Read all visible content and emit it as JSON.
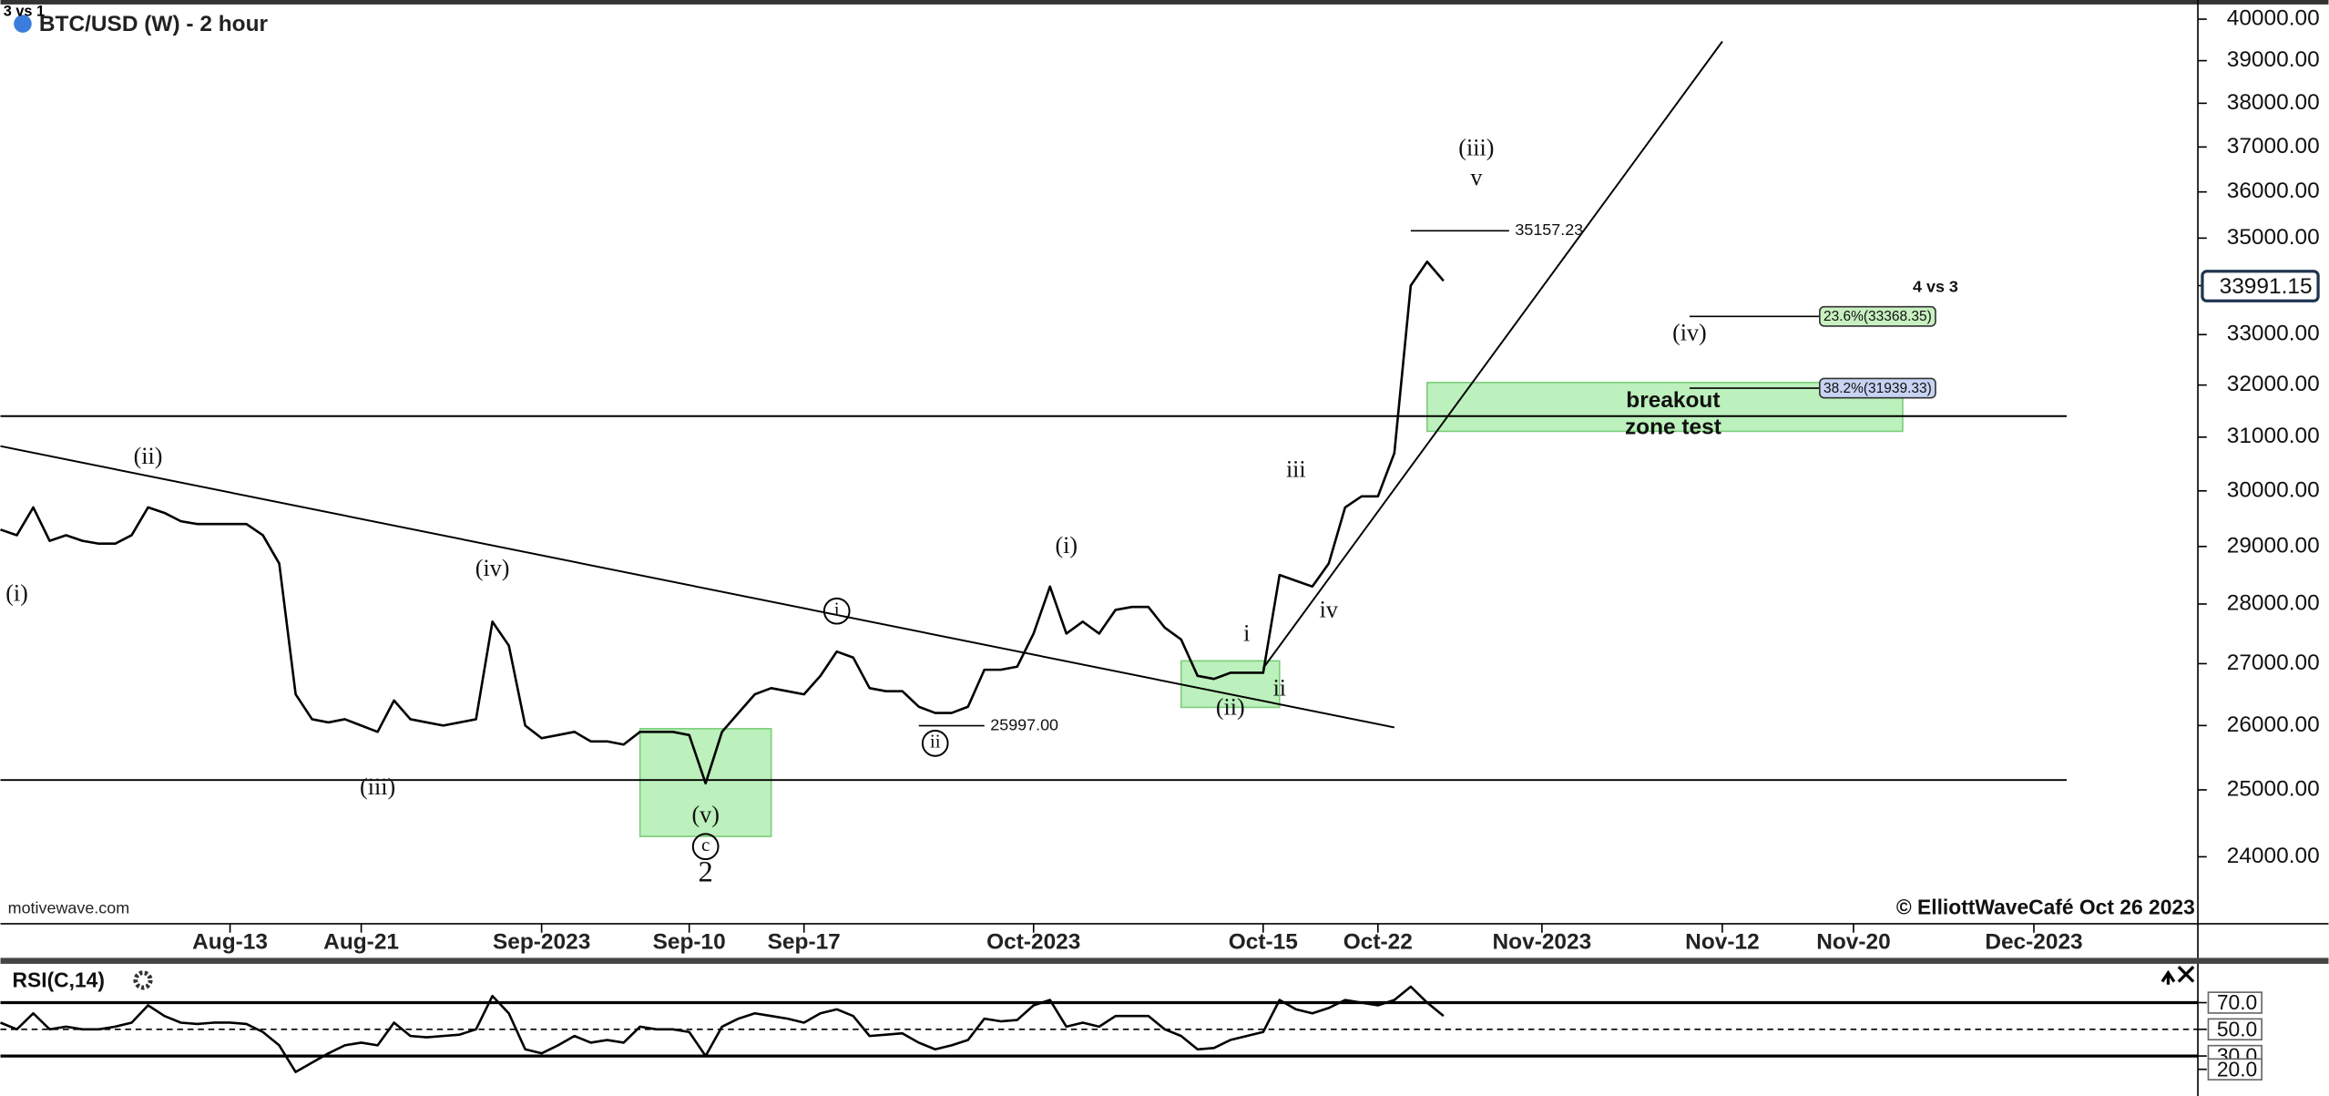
{
  "chart_data": [
    {
      "type": "line",
      "title": "BTC/USD (W) - 2 hour",
      "corner_note": "3 vs 1",
      "source": "motivewave.com",
      "copyright": "© ElliottWaveCafé Oct 26 2023",
      "log_scale": true,
      "color": "#000000",
      "xlim": [
        "2023-07-30",
        "2023-12-11"
      ],
      "ylim": [
        23040,
        40470
      ],
      "xticks": [
        {
          "value": "2023-08-13",
          "label": "Aug-13"
        },
        {
          "value": "2023-08-21",
          "label": "Aug-21"
        },
        {
          "value": "2023-09-01",
          "label": "Sep-2023"
        },
        {
          "value": "2023-09-10",
          "label": "Sep-10"
        },
        {
          "value": "2023-09-17",
          "label": "Sep-17"
        },
        {
          "value": "2023-10-01",
          "label": "Oct-2023"
        },
        {
          "value": "2023-10-15",
          "label": "Oct-15"
        },
        {
          "value": "2023-10-22",
          "label": "Oct-22"
        },
        {
          "value": "2023-11-01",
          "label": "Nov-2023"
        },
        {
          "value": "2023-11-12",
          "label": "Nov-12"
        },
        {
          "value": "2023-11-20",
          "label": "Nov-20"
        },
        {
          "value": "2023-12-01",
          "label": "Dec-2023"
        }
      ],
      "yticks": [
        {
          "value": 24000,
          "label": "24000.00"
        },
        {
          "value": 25000,
          "label": "25000.00"
        },
        {
          "value": 26000,
          "label": "26000.00"
        },
        {
          "value": 27000,
          "label": "27000.00"
        },
        {
          "value": 28000,
          "label": "28000.00"
        },
        {
          "value": 29000,
          "label": "29000.00"
        },
        {
          "value": 30000,
          "label": "30000.00"
        },
        {
          "value": 31000,
          "label": "31000.00"
        },
        {
          "value": 32000,
          "label": "32000.00"
        },
        {
          "value": 33000,
          "label": "33000.00"
        },
        {
          "value": 34000,
          "label": "34000.00"
        },
        {
          "value": 35000,
          "label": "35000.00"
        },
        {
          "value": 36000,
          "label": "36000.00"
        },
        {
          "value": 37000,
          "label": "37000.00"
        },
        {
          "value": 38000,
          "label": "38000.00"
        },
        {
          "value": 39000,
          "label": "39000.00"
        },
        {
          "value": 40000,
          "label": "40000.00"
        }
      ],
      "last_price": 33991.15,
      "x": [
        "2023-07-30",
        "2023-07-31",
        "2023-08-01",
        "2023-08-02",
        "2023-08-03",
        "2023-08-04",
        "2023-08-05",
        "2023-08-06",
        "2023-08-07",
        "2023-08-08",
        "2023-08-09",
        "2023-08-10",
        "2023-08-11",
        "2023-08-12",
        "2023-08-13",
        "2023-08-14",
        "2023-08-15",
        "2023-08-16",
        "2023-08-17",
        "2023-08-18",
        "2023-08-19",
        "2023-08-20",
        "2023-08-21",
        "2023-08-22",
        "2023-08-23",
        "2023-08-24",
        "2023-08-25",
        "2023-08-26",
        "2023-08-27",
        "2023-08-28",
        "2023-08-29",
        "2023-08-30",
        "2023-08-31",
        "2023-09-01",
        "2023-09-02",
        "2023-09-03",
        "2023-09-04",
        "2023-09-05",
        "2023-09-06",
        "2023-09-07",
        "2023-09-08",
        "2023-09-09",
        "2023-09-10",
        "2023-09-11",
        "2023-09-12",
        "2023-09-13",
        "2023-09-14",
        "2023-09-15",
        "2023-09-16",
        "2023-09-17",
        "2023-09-18",
        "2023-09-19",
        "2023-09-20",
        "2023-09-21",
        "2023-09-22",
        "2023-09-23",
        "2023-09-24",
        "2023-09-25",
        "2023-09-26",
        "2023-09-27",
        "2023-09-28",
        "2023-09-29",
        "2023-09-30",
        "2023-10-01",
        "2023-10-02",
        "2023-10-03",
        "2023-10-04",
        "2023-10-05",
        "2023-10-06",
        "2023-10-07",
        "2023-10-08",
        "2023-10-09",
        "2023-10-10",
        "2023-10-11",
        "2023-10-12",
        "2023-10-13",
        "2023-10-14",
        "2023-10-15",
        "2023-10-16",
        "2023-10-17",
        "2023-10-18",
        "2023-10-19",
        "2023-10-20",
        "2023-10-21",
        "2023-10-22",
        "2023-10-23",
        "2023-10-24",
        "2023-10-25",
        "2023-10-26"
      ],
      "values": [
        29300,
        29200,
        29700,
        29100,
        29200,
        29100,
        29050,
        29050,
        29200,
        29700,
        29600,
        29450,
        29400,
        29400,
        29400,
        29400,
        29200,
        28700,
        26500,
        26100,
        26050,
        26100,
        26000,
        25900,
        26400,
        26100,
        26050,
        26000,
        26050,
        26100,
        27700,
        27300,
        26000,
        25800,
        25850,
        25900,
        25750,
        25750,
        25700,
        25900,
        25900,
        25900,
        25850,
        25100,
        25900,
        26200,
        26500,
        26600,
        26550,
        26500,
        26800,
        27200,
        27100,
        26600,
        26550,
        26550,
        26300,
        26200,
        26200,
        26300,
        26900,
        26900,
        26950,
        27500,
        28300,
        27500,
        27700,
        27500,
        27900,
        27950,
        27950,
        27600,
        27400,
        26800,
        26750,
        26850,
        26850,
        26850,
        28500,
        28400,
        28300,
        28700,
        29700,
        29900,
        29900,
        30700,
        34000,
        34500,
        34100
      ],
      "lines": [
        {
          "x": [
            "2023-07-30",
            "2023-12-03"
          ],
          "y": [
            31400,
            31400
          ]
        },
        {
          "x": [
            "2023-07-30",
            "2023-12-03"
          ],
          "y": [
            25150,
            25150
          ]
        },
        {
          "x": [
            "2023-07-30",
            "2023-10-23"
          ],
          "y": [
            30830,
            25970
          ]
        },
        {
          "x": [
            "2023-10-15",
            "2023-11-12"
          ],
          "y": [
            26925,
            39460
          ]
        }
      ],
      "zones": [
        {
          "x": [
            "2023-09-07",
            "2023-09-15"
          ],
          "y": [
            24300,
            25950
          ]
        },
        {
          "x": [
            "2023-10-10",
            "2023-10-16"
          ],
          "y": [
            26290,
            27046
          ]
        },
        {
          "x": [
            "2023-10-25",
            "2023-11-23"
          ],
          "y": [
            31110,
            32050
          ]
        }
      ],
      "zone_color": "#8fe68f",
      "price_marks": [
        {
          "value": 35157.23,
          "label": "35157.23",
          "from": "2023-10-24",
          "to": "2023-10-30"
        },
        {
          "value": 25997,
          "label": "25997.00",
          "from": "2023-09-24",
          "to": "2023-09-28"
        }
      ],
      "fib_levels": [
        {
          "value": 33368.35,
          "label": "23.6%(33368.35)",
          "from": "2023-11-10",
          "to": "2023-11-25",
          "color": "#c8f0c0"
        },
        {
          "value": 31939.33,
          "label": "38.2%(31939.33)",
          "from": "2023-11-10",
          "to": "2023-11-25",
          "color": "#c8d2f2"
        }
      ],
      "annotations": [
        {
          "text": "(i)",
          "x": "2023-07-31",
          "y": 28150
        },
        {
          "text": "(ii)",
          "x": "2023-08-08",
          "y": 30600
        },
        {
          "text": "(iii)",
          "x": "2023-08-22",
          "y": 25010
        },
        {
          "text": "(iv)",
          "x": "2023-08-29",
          "y": 28580
        },
        {
          "text": "(v)",
          "x": "2023-09-11",
          "y": 24590
        },
        {
          "text": "c",
          "x": "2023-09-11",
          "y": 24150,
          "circled": true
        },
        {
          "text": "2",
          "x": "2023-09-11",
          "y": 23740,
          "big": true
        },
        {
          "text": "i",
          "x": "2023-09-19",
          "y": 27880,
          "circled": true
        },
        {
          "text": "ii",
          "x": "2023-09-25",
          "y": 25720,
          "circled": true
        },
        {
          "text": "(i)",
          "x": "2023-10-03",
          "y": 28980
        },
        {
          "text": "(ii)",
          "x": "2023-10-13",
          "y": 26260
        },
        {
          "text": "i",
          "x": "2023-10-14",
          "y": 27470
        },
        {
          "text": "ii",
          "x": "2023-10-16",
          "y": 26570
        },
        {
          "text": "iii",
          "x": "2023-10-17",
          "y": 30360
        },
        {
          "text": "iv",
          "x": "2023-10-19",
          "y": 27870
        },
        {
          "text": "(iii)",
          "x": "2023-10-28",
          "y": 36930
        },
        {
          "text": "v",
          "x": "2023-10-28",
          "y": 36270
        },
        {
          "text": "(iv)",
          "x": "2023-11-10",
          "y": 33000
        },
        {
          "text": "breakout",
          "x": "2023-11-09",
          "y": 31680,
          "bold": true
        },
        {
          "text": "zone test",
          "x": "2023-11-09",
          "y": 31170,
          "bold": true
        },
        {
          "text": "4 vs 3",
          "x": "2023-11-25",
          "y": 33960,
          "bold": true,
          "small": true
        }
      ]
    },
    {
      "type": "line",
      "title": "RSI(C,14)",
      "color": "#000000",
      "xlim": [
        "2023-07-30",
        "2023-12-11"
      ],
      "ylim": [
        0,
        98
      ],
      "yticks": [
        {
          "value": 70,
          "label": "70.0"
        },
        {
          "value": 50,
          "label": "50.0"
        },
        {
          "value": 30,
          "label": "30.0"
        },
        {
          "value": 20,
          "label": "20.0"
        }
      ],
      "ref_lines": [
        {
          "value": 70,
          "style": "solid"
        },
        {
          "value": 50,
          "style": "dashed"
        },
        {
          "value": 30,
          "style": "solid"
        }
      ],
      "x": [
        "2023-07-30",
        "2023-07-31",
        "2023-08-01",
        "2023-08-02",
        "2023-08-03",
        "2023-08-04",
        "2023-08-05",
        "2023-08-06",
        "2023-08-07",
        "2023-08-08",
        "2023-08-09",
        "2023-08-10",
        "2023-08-11",
        "2023-08-12",
        "2023-08-13",
        "2023-08-14",
        "2023-08-15",
        "2023-08-16",
        "2023-08-17",
        "2023-08-18",
        "2023-08-19",
        "2023-08-20",
        "2023-08-21",
        "2023-08-22",
        "2023-08-23",
        "2023-08-24",
        "2023-08-25",
        "2023-08-26",
        "2023-08-27",
        "2023-08-28",
        "2023-08-29",
        "2023-08-30",
        "2023-08-31",
        "2023-09-01",
        "2023-09-02",
        "2023-09-03",
        "2023-09-04",
        "2023-09-05",
        "2023-09-06",
        "2023-09-07",
        "2023-09-08",
        "2023-09-09",
        "2023-09-10",
        "2023-09-11",
        "2023-09-12",
        "2023-09-13",
        "2023-09-14",
        "2023-09-15",
        "2023-09-16",
        "2023-09-17",
        "2023-09-18",
        "2023-09-19",
        "2023-09-20",
        "2023-09-21",
        "2023-09-22",
        "2023-09-23",
        "2023-09-24",
        "2023-09-25",
        "2023-09-26",
        "2023-09-27",
        "2023-09-28",
        "2023-09-29",
        "2023-09-30",
        "2023-10-01",
        "2023-10-02",
        "2023-10-03",
        "2023-10-04",
        "2023-10-05",
        "2023-10-06",
        "2023-10-07",
        "2023-10-08",
        "2023-10-09",
        "2023-10-10",
        "2023-10-11",
        "2023-10-12",
        "2023-10-13",
        "2023-10-14",
        "2023-10-15",
        "2023-10-16",
        "2023-10-17",
        "2023-10-18",
        "2023-10-19",
        "2023-10-20",
        "2023-10-21",
        "2023-10-22",
        "2023-10-23",
        "2023-10-24",
        "2023-10-25",
        "2023-10-26"
      ],
      "values": [
        55,
        50,
        62,
        50,
        52,
        50,
        50,
        52,
        55,
        68,
        60,
        55,
        54,
        55,
        55,
        54,
        48,
        38,
        18,
        25,
        32,
        38,
        40,
        38,
        55,
        45,
        44,
        45,
        46,
        50,
        75,
        62,
        35,
        32,
        38,
        45,
        40,
        42,
        40,
        52,
        50,
        50,
        48,
        30,
        52,
        58,
        62,
        60,
        58,
        55,
        62,
        65,
        60,
        45,
        46,
        47,
        40,
        35,
        38,
        42,
        58,
        56,
        57,
        68,
        72,
        52,
        55,
        52,
        60,
        60,
        60,
        50,
        45,
        35,
        36,
        42,
        45,
        48,
        72,
        65,
        62,
        66,
        72,
        70,
        68,
        72,
        82,
        70,
        60
      ]
    }
  ]
}
